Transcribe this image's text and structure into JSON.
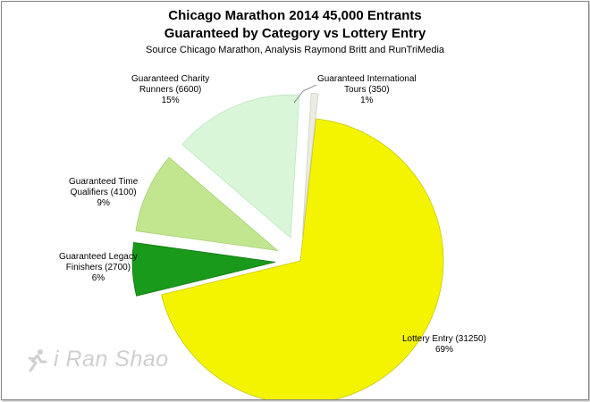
{
  "chart_data": {
    "type": "pie",
    "title": "Chicago Marathon 2014 45,000 Entrants",
    "title_line2": "Guaranteed by Category vs Lottery Entry",
    "subtitle": "Source Chicago Marathon, Analysis Raymond Britt and RunTriMedia",
    "slices": [
      {
        "label": "Lottery Entry (31250)",
        "pct": "69%",
        "value": 31250,
        "color": "#f4f400",
        "stroke": "#c8c800"
      },
      {
        "label": "Guaranteed Legacy Finishers (2700)",
        "label_lines": [
          "Guaranteed Legacy",
          "Finishers (2700)"
        ],
        "pct": "6%",
        "value": 2700,
        "color": "#1a9a1a",
        "stroke": "#137813"
      },
      {
        "label": "Guaranteed Time Qualifiers (4100)",
        "label_lines": [
          "Guaranteed Time",
          "Qualifiers (4100)"
        ],
        "pct": "9%",
        "value": 4100,
        "color": "#c2e690",
        "stroke": "#a7cf72"
      },
      {
        "label": "Guaranteed Charity Runners (6600)",
        "label_lines": [
          "Guaranteed Charity",
          "Runners (6600)"
        ],
        "pct": "15%",
        "value": 6600,
        "color": "#d9f6d9",
        "stroke": "#bfe6bf"
      },
      {
        "label": "Guaranteed International Tours (350)",
        "label_lines": [
          "Guaranteed International",
          "Tours (350)"
        ],
        "pct": "1%",
        "value": 350,
        "color": "#ecece0",
        "stroke": "#cfcfc0"
      }
    ]
  },
  "watermark": {
    "text": "i Ran Shao"
  }
}
